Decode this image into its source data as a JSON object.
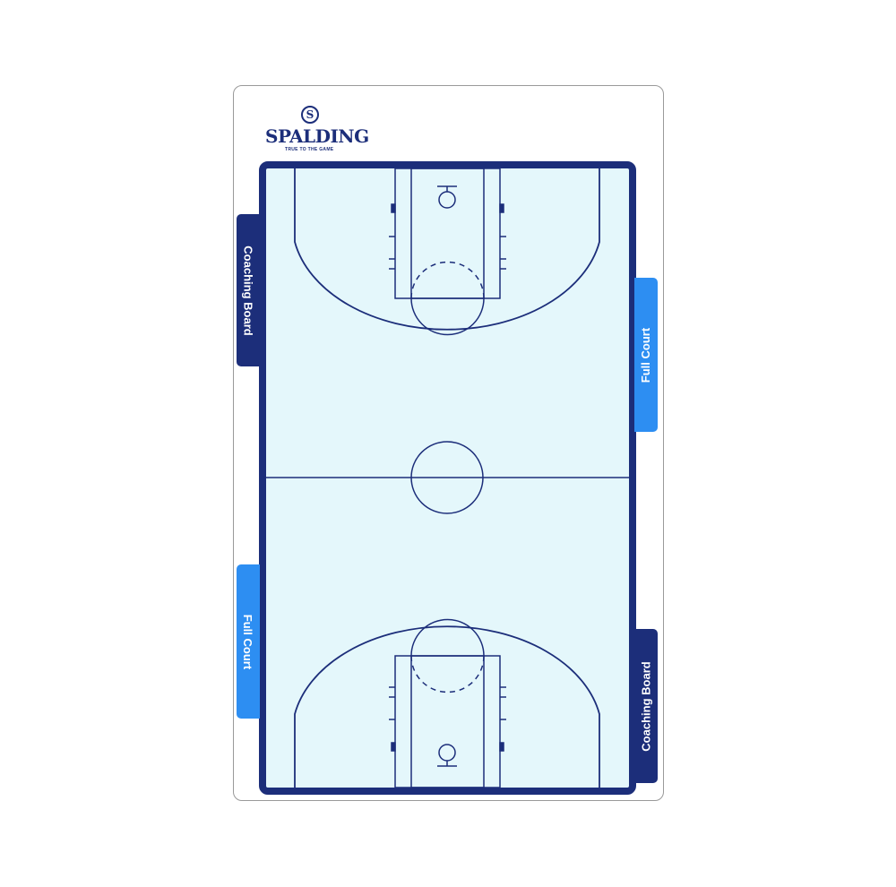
{
  "brand": {
    "name": "SPALDING",
    "tagline": "TRUE TO THE GAME",
    "ball_letter": "S",
    "color": "#1c2e7a"
  },
  "tabs": {
    "top_left": "Coaching Board",
    "top_right": "Full Court",
    "bottom_left": "Full Court",
    "bottom_right": "Coaching Board"
  },
  "court": {
    "floor_color": "#e4f7fb",
    "line_color": "#1c2e7a",
    "accent_color": "#2d8ef2"
  }
}
